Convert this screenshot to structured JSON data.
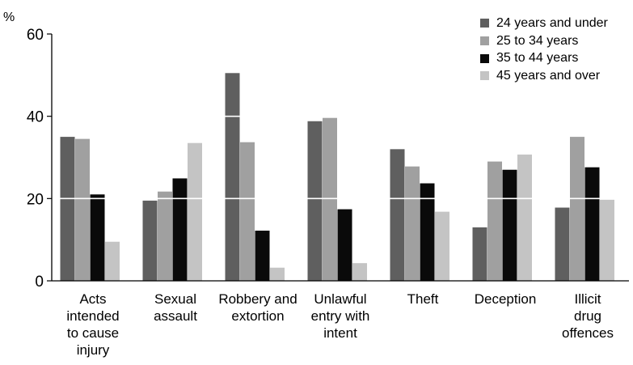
{
  "chart_data": {
    "type": "bar",
    "ylabel": "%",
    "ylim": [
      0,
      60
    ],
    "yticks": [
      0,
      20,
      40,
      60
    ],
    "grid": "white horizontal gridlines drawn over bars",
    "legend_position": "top-right",
    "categories": [
      [
        "Acts",
        "intended",
        "to cause",
        "injury"
      ],
      [
        "Sexual",
        "assault"
      ],
      [
        "Robbery and",
        "extortion"
      ],
      [
        "Unlawful",
        "entry with",
        "intent"
      ],
      [
        "Theft"
      ],
      [
        "Deception"
      ],
      [
        "Illicit",
        "drug",
        "offences"
      ]
    ],
    "series": [
      {
        "name": "24 years and under",
        "color": "#5f5f5f",
        "values": [
          35,
          19.5,
          50.5,
          38.8,
          32,
          13,
          17.8
        ]
      },
      {
        "name": "25 to 34 years",
        "color": "#a0a0a0",
        "values": [
          34.5,
          21.7,
          33.7,
          39.6,
          27.8,
          29,
          35
        ]
      },
      {
        "name": "35 to 44 years",
        "color": "#0a0a0a",
        "values": [
          21,
          24.9,
          12.2,
          17.4,
          23.7,
          27,
          27.6
        ]
      },
      {
        "name": "45 years and over",
        "color": "#c4c4c4",
        "values": [
          9.5,
          33.5,
          3.2,
          4.3,
          16.8,
          30.7,
          19.7
        ]
      }
    ]
  }
}
